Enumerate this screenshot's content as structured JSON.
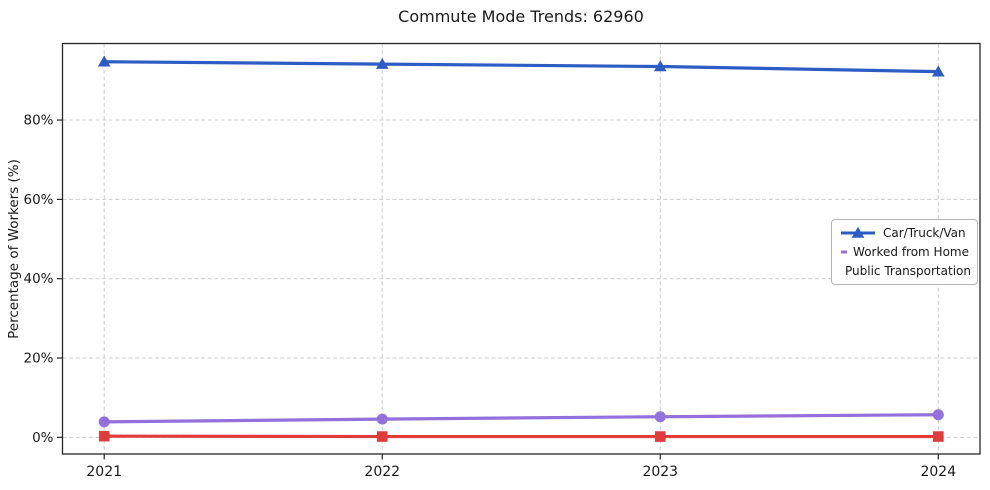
{
  "chart_data": {
    "type": "line",
    "title": "Commute Mode Trends: 62960",
    "xlabel": "",
    "ylabel": "Percentage of Workers (%)",
    "x": [
      2021,
      2022,
      2023,
      2024
    ],
    "x_tick_labels": [
      "2021",
      "2022",
      "2023",
      "2024"
    ],
    "y_ticks": [
      0,
      20,
      40,
      60,
      80
    ],
    "y_tick_labels": [
      "0%",
      "20%",
      "40%",
      "60%",
      "80%"
    ],
    "xlim": [
      2020.85,
      2024.15
    ],
    "ylim": [
      -4.2,
      99.3
    ],
    "grid": true,
    "grid_style": "dashed",
    "legend_position": "center-right",
    "series": [
      {
        "name": "Car/Truck/Van",
        "color": "#2e5cc5",
        "marker": "triangle-up",
        "values": [
          94.7,
          94.1,
          93.5,
          92.2
        ]
      },
      {
        "name": "Worked from Home",
        "color": "#9370db",
        "marker": "circle",
        "values": [
          3.9,
          4.6,
          5.2,
          5.7
        ]
      },
      {
        "name": "Public Transportation",
        "color": "#e03c3c",
        "marker": "square",
        "values": [
          0.3,
          0.2,
          0.2,
          0.2
        ]
      }
    ],
    "colors": {
      "grid": "#cccccc",
      "spine": "#262626",
      "text": "#1a1a1a",
      "background": "#ffffff"
    }
  }
}
